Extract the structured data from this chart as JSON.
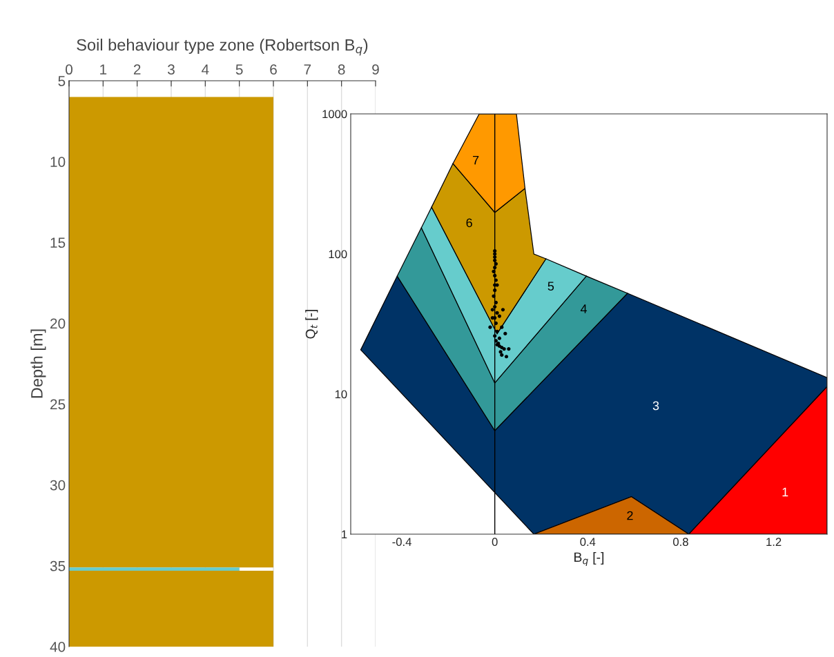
{
  "chart_data": [
    {
      "type": "area",
      "orientation": "horizontal",
      "xlabel": "Soil behaviour type zone (Robertson B$_{q}$)",
      "ylabel": "Depth [m]",
      "series": [
        {
          "color": "#cc9900",
          "x": [
            6,
            35.1,
            null,
            35.3,
            40
          ],
          "values": [
            6,
            6,
            null,
            6,
            6
          ]
        },
        {
          "color": "#66cccc",
          "x": [
            35.1,
            35.3
          ],
          "values": [
            5,
            5
          ]
        }
      ],
      "xlim": [
        0,
        9
      ],
      "xticks": [
        0,
        1,
        2,
        3,
        4,
        5,
        6,
        7,
        8,
        9
      ],
      "ylim": [
        40,
        5
      ],
      "yticks": [
        5,
        10,
        15,
        20,
        25,
        30,
        35,
        40
      ],
      "grid": "x"
    },
    {
      "type": "scatter",
      "xlabel": "B$_{q}$ [-]",
      "ylabel": "Q$_{t}$ [-]",
      "log": "y",
      "series": [
        {
          "type": "area",
          "name": "3",
          "color": "#003366",
          "x": [
            -0.577,
            -0.42,
            0,
            0.571,
            1.43,
            1.43,
            0.835,
            0.588,
            0.168
          ],
          "values": [
            20.7,
            69.5,
            5.48,
            52.4,
            13.1,
            11.3,
            1,
            1.85,
            1
          ]
        },
        {
          "type": "area",
          "name": "4",
          "color": "#339999",
          "x": [
            -0.42,
            -0.316,
            0,
            0.394,
            0.571,
            0
          ],
          "values": [
            69.5,
            154,
            12,
            69.5,
            52.4,
            5.48
          ]
        },
        {
          "type": "area",
          "name": "5",
          "color": "#66cccc",
          "x": [
            -0.316,
            -0.272,
            0.01,
            0.22,
            0.394,
            0
          ],
          "values": [
            154,
            216,
            27,
            92.4,
            69.5,
            12
          ]
        },
        {
          "type": "area",
          "name": "6",
          "color": "#cc9900",
          "x": [
            -0.272,
            -0.18,
            0,
            0.13,
            0.168,
            0.22,
            0.01
          ],
          "values": [
            216,
            442,
            198,
            294,
            100,
            92.4,
            27
          ]
        },
        {
          "type": "area",
          "name": "7",
          "color": "#ff9900",
          "x": [
            -0.18,
            -0.067,
            0.093,
            0.13,
            0
          ],
          "values": [
            442,
            1000,
            1000,
            294,
            198
          ]
        },
        {
          "type": "area",
          "name": "2",
          "color": "#cc6600",
          "x": [
            0.168,
            0.588,
            0.835
          ],
          "values": [
            1,
            1.85,
            1
          ]
        },
        {
          "type": "area",
          "name": "1",
          "color": "#ff0000",
          "x": [
            0.835,
            1.43,
            1.43
          ],
          "values": [
            1,
            11.3,
            1
          ]
        },
        {
          "type": "scatter",
          "color": "#000000",
          "x": [
            0,
            0,
            0,
            0,
            0.005,
            0,
            -0.005,
            0,
            0.005,
            0,
            0,
            -0.005,
            0.005,
            0,
            -0.01,
            0.01,
            0,
            0.005,
            -0.02,
            0.01,
            0,
            0.005,
            0.01,
            0.02,
            0.03,
            0.04,
            0.06,
            0.03,
            0.05,
            0.025,
            0.015,
            0.045,
            0.035,
            0.01,
            -0.01,
            0.02,
            0.03,
            0.02
          ],
          "values": [
            105,
            100,
            95,
            90,
            85,
            80,
            75,
            70,
            65,
            60,
            55,
            50,
            45,
            42,
            40,
            38,
            35,
            32,
            30,
            28,
            26,
            24,
            22.5,
            22,
            21.5,
            21,
            21,
            19,
            18.5,
            20,
            23,
            27,
            40,
            60,
            35,
            36,
            30,
            25
          ]
        }
      ],
      "ref_lines": [
        {
          "axis": "x",
          "value": 0,
          "color": "#000000"
        }
      ],
      "xlim": [
        -0.62,
        1.43
      ],
      "xticks": [
        -0.4,
        0,
        0.4,
        0.8,
        1.2
      ],
      "ylim": [
        1,
        1000
      ],
      "yticks": [
        1,
        10,
        100,
        1000
      ]
    }
  ]
}
